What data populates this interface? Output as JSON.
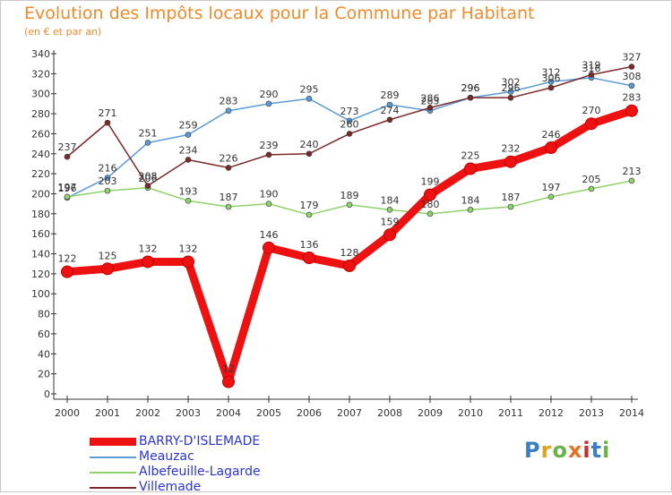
{
  "header": {
    "title": "Evolution des Impôts locaux pour la Commune par Habitant",
    "subtitle": "(en € et par an)"
  },
  "logo": {
    "text": [
      "P",
      "r",
      "o",
      "x",
      "i",
      "t",
      "i"
    ],
    "colors": [
      "#3a7fc1",
      "#e0a020",
      "#6ab04c",
      "#e87020",
      "#c03030",
      "#3a7fc1",
      "#6ab04c"
    ]
  },
  "chart_data": {
    "type": "line",
    "title": "Evolution des Impôts locaux pour la Commune par Habitant",
    "subtitle": "(en € et par an)",
    "xlabel": "",
    "ylabel": "",
    "x": [
      "2000",
      "2001",
      "2002",
      "2003",
      "2004",
      "2005",
      "2006",
      "2007",
      "2008",
      "2009",
      "2010",
      "2011",
      "2012",
      "2013",
      "2014"
    ],
    "ylim": [
      0,
      340
    ],
    "yticks": [
      0,
      20,
      40,
      60,
      80,
      100,
      120,
      140,
      160,
      180,
      200,
      220,
      240,
      260,
      280,
      300,
      320,
      340
    ],
    "grid": false,
    "legend_position": "bottom-left",
    "series": [
      {
        "name": "BARRY-D'ISLEMADE",
        "color": "#ee1111",
        "emphasis": true,
        "values": [
          122,
          125,
          132,
          132,
          12,
          146,
          136,
          128,
          159,
          199,
          225,
          232,
          246,
          270,
          283
        ],
        "labels": [
          "122",
          "125",
          "132",
          "132",
          "12",
          "146",
          "136",
          "128",
          "159",
          "199",
          "225",
          "232",
          "246",
          "270",
          "283"
        ]
      },
      {
        "name": "Meauzac",
        "color": "#5b9bd5",
        "emphasis": false,
        "values": [
          196,
          216,
          251,
          259,
          283,
          290,
          295,
          273,
          289,
          283,
          296,
          302,
          312,
          316,
          308
        ],
        "labels": [
          "196",
          "216",
          "251",
          "259",
          "283",
          "290",
          "295",
          "273",
          "289",
          "283",
          "296",
          "302",
          "312",
          "316",
          "308"
        ]
      },
      {
        "name": "Albefeuille-Lagarde",
        "color": "#8fd16a",
        "emphasis": false,
        "values": [
          197,
          203,
          206,
          193,
          187,
          190,
          179,
          189,
          184,
          180,
          184,
          187,
          197,
          205,
          213
        ],
        "labels": [
          "197",
          "203",
          "206",
          "193",
          "187",
          "190",
          "179",
          "189",
          "184",
          "180",
          "184",
          "187",
          "197",
          "205",
          "213"
        ]
      },
      {
        "name": "Villemade",
        "color": "#7a2a2a",
        "emphasis": false,
        "values": [
          237,
          271,
          208,
          234,
          226,
          239,
          240,
          260,
          274,
          286,
          296,
          296,
          306,
          319,
          327
        ],
        "labels": [
          "237",
          "271",
          "208",
          "234",
          "226",
          "239",
          "240",
          "260",
          "274",
          "286",
          "296",
          "296",
          "306",
          "319",
          "327"
        ]
      }
    ]
  }
}
